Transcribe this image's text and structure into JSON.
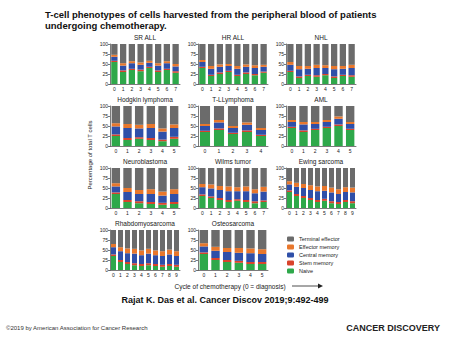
{
  "title": "T-cell phenotypes of cells harvested from the peripheral blood of patients undergoing chemotherapy.",
  "y_label": "Percentage of total T cells",
  "x_label": "Cycle of chemotherapy (0 = diagnosis)",
  "citation": "Rajat K. Das et al. Cancer Discov 2019;9:492-499",
  "copyright": "©2019 by American Association for Cancer Research",
  "journal": "CANCER DISCOVERY",
  "chart_data": [
    {
      "type": "bar",
      "title": "SR ALL",
      "stacked": true,
      "grid": false,
      "ylim": [
        0,
        100
      ],
      "yticks": [
        0,
        25,
        50,
        75,
        100
      ],
      "categories": [
        0,
        1,
        2,
        3,
        4,
        5,
        6,
        7
      ],
      "series": [
        {
          "name": "Naive",
          "color": "#2ea84a",
          "values": [
            55,
            30,
            35,
            32,
            40,
            30,
            35,
            28
          ]
        },
        {
          "name": "Stem memory",
          "color": "#d9432b",
          "values": [
            3,
            4,
            3,
            4,
            3,
            4,
            3,
            4
          ]
        },
        {
          "name": "Central memory",
          "color": "#2f4fa8",
          "values": [
            10,
            12,
            14,
            12,
            10,
            12,
            14,
            12
          ]
        },
        {
          "name": "Effector memory",
          "color": "#e8772c",
          "values": [
            5,
            6,
            5,
            6,
            5,
            6,
            5,
            6
          ]
        },
        {
          "name": "Terminal effector",
          "color": "#6b6b6b",
          "values": [
            27,
            48,
            43,
            46,
            42,
            48,
            43,
            50
          ]
        }
      ]
    },
    {
      "type": "bar",
      "title": "HR ALL",
      "stacked": true,
      "grid": false,
      "ylim": [
        0,
        100
      ],
      "yticks": [
        0,
        25,
        50,
        75,
        100
      ],
      "categories": [
        0,
        1,
        2,
        3,
        4,
        5,
        6,
        7
      ],
      "series": [
        {
          "name": "Naive",
          "color": "#2ea84a",
          "values": [
            40,
            20,
            25,
            30,
            20,
            25,
            22,
            28
          ]
        },
        {
          "name": "Stem memory",
          "color": "#d9432b",
          "values": [
            3,
            3,
            4,
            3,
            3,
            4,
            3,
            3
          ]
        },
        {
          "name": "Central memory",
          "color": "#2f4fa8",
          "values": [
            12,
            15,
            14,
            12,
            15,
            14,
            15,
            12
          ]
        },
        {
          "name": "Effector memory",
          "color": "#e8772c",
          "values": [
            5,
            7,
            6,
            5,
            7,
            6,
            7,
            5
          ]
        },
        {
          "name": "Terminal effector",
          "color": "#6b6b6b",
          "values": [
            40,
            55,
            51,
            50,
            55,
            51,
            53,
            52
          ]
        }
      ]
    },
    {
      "type": "bar",
      "title": "NHL",
      "stacked": true,
      "grid": false,
      "ylim": [
        0,
        100
      ],
      "yticks": [
        0,
        25,
        50,
        75,
        100
      ],
      "categories": [
        0,
        1,
        2,
        3,
        4,
        5,
        6,
        7
      ],
      "series": [
        {
          "name": "Naive",
          "color": "#2ea84a",
          "values": [
            30,
            15,
            20,
            18,
            22,
            15,
            20,
            18
          ]
        },
        {
          "name": "Stem memory",
          "color": "#d9432b",
          "values": [
            3,
            4,
            3,
            4,
            3,
            4,
            3,
            4
          ]
        },
        {
          "name": "Central memory",
          "color": "#2f4fa8",
          "values": [
            15,
            18,
            15,
            18,
            15,
            18,
            15,
            18
          ]
        },
        {
          "name": "Effector memory",
          "color": "#e8772c",
          "values": [
            7,
            8,
            7,
            8,
            7,
            8,
            7,
            8
          ]
        },
        {
          "name": "Terminal effector",
          "color": "#6b6b6b",
          "values": [
            45,
            55,
            55,
            52,
            53,
            55,
            55,
            52
          ]
        }
      ]
    },
    {
      "type": "bar",
      "title": "Hodgkin lymphoma",
      "stacked": true,
      "grid": false,
      "ylim": [
        0,
        100
      ],
      "yticks": [
        0,
        25,
        50,
        75,
        100
      ],
      "categories": [
        0,
        1,
        2,
        3,
        4,
        5
      ],
      "series": [
        {
          "name": "Naive",
          "color": "#2ea84a",
          "values": [
            25,
            15,
            18,
            15,
            12,
            18
          ]
        },
        {
          "name": "Stem memory",
          "color": "#d9432b",
          "values": [
            4,
            5,
            4,
            5,
            4,
            5
          ]
        },
        {
          "name": "Central memory",
          "color": "#2f4fa8",
          "values": [
            20,
            25,
            22,
            25,
            20,
            22
          ]
        },
        {
          "name": "Effector memory",
          "color": "#e8772c",
          "values": [
            8,
            10,
            9,
            10,
            8,
            9
          ]
        },
        {
          "name": "Terminal effector",
          "color": "#6b6b6b",
          "values": [
            43,
            45,
            47,
            45,
            56,
            46
          ]
        }
      ]
    },
    {
      "type": "bar",
      "title": "T-LLymphoma",
      "stacked": true,
      "grid": false,
      "ylim": [
        0,
        100
      ],
      "yticks": [
        0,
        25,
        50,
        75,
        100
      ],
      "categories": [
        0,
        1,
        2,
        3,
        4
      ],
      "series": [
        {
          "name": "Naive",
          "color": "#2ea84a",
          "values": [
            35,
            40,
            30,
            35,
            25
          ]
        },
        {
          "name": "Stem memory",
          "color": "#d9432b",
          "values": [
            3,
            4,
            3,
            4,
            3
          ]
        },
        {
          "name": "Central memory",
          "color": "#2f4fa8",
          "values": [
            12,
            15,
            12,
            14,
            12
          ]
        },
        {
          "name": "Effector memory",
          "color": "#e8772c",
          "values": [
            5,
            6,
            5,
            6,
            5
          ]
        },
        {
          "name": "Terminal effector",
          "color": "#6b6b6b",
          "values": [
            45,
            35,
            50,
            41,
            55
          ]
        }
      ]
    },
    {
      "type": "bar",
      "title": "AML",
      "stacked": true,
      "grid": false,
      "ylim": [
        0,
        100
      ],
      "yticks": [
        0,
        25,
        50,
        75,
        100
      ],
      "categories": [
        0,
        1,
        2,
        3,
        4,
        5
      ],
      "series": [
        {
          "name": "Naive",
          "color": "#2ea84a",
          "values": [
            45,
            35,
            40,
            45,
            50,
            40
          ]
        },
        {
          "name": "Stem memory",
          "color": "#d9432b",
          "values": [
            3,
            4,
            3,
            3,
            4,
            3
          ]
        },
        {
          "name": "Central memory",
          "color": "#2f4fa8",
          "values": [
            12,
            15,
            12,
            12,
            14,
            12
          ]
        },
        {
          "name": "Effector memory",
          "color": "#e8772c",
          "values": [
            5,
            6,
            5,
            5,
            6,
            5
          ]
        },
        {
          "name": "Terminal effector",
          "color": "#6b6b6b",
          "values": [
            35,
            40,
            40,
            35,
            26,
            40
          ]
        }
      ]
    },
    {
      "type": "bar",
      "title": "Neuroblastoma",
      "stacked": true,
      "grid": false,
      "ylim": [
        0,
        100
      ],
      "yticks": [
        0,
        25,
        50,
        75,
        100
      ],
      "categories": [
        0,
        1,
        2,
        3,
        4,
        5
      ],
      "series": [
        {
          "name": "Naive",
          "color": "#2ea84a",
          "values": [
            35,
            15,
            12,
            10,
            8,
            10
          ]
        },
        {
          "name": "Stem memory",
          "color": "#d9432b",
          "values": [
            4,
            5,
            5,
            5,
            5,
            5
          ]
        },
        {
          "name": "Central memory",
          "color": "#2f4fa8",
          "values": [
            15,
            20,
            18,
            20,
            18,
            20
          ]
        },
        {
          "name": "Effector memory",
          "color": "#e8772c",
          "values": [
            8,
            10,
            10,
            12,
            10,
            12
          ]
        },
        {
          "name": "Terminal effector",
          "color": "#6b6b6b",
          "values": [
            38,
            50,
            55,
            53,
            59,
            53
          ]
        }
      ]
    },
    {
      "type": "bar",
      "title": "Wilms tumor",
      "stacked": true,
      "grid": false,
      "ylim": [
        0,
        100
      ],
      "yticks": [
        0,
        25,
        50,
        75,
        100
      ],
      "categories": [
        0,
        1,
        2,
        3,
        4,
        5,
        6,
        7
      ],
      "series": [
        {
          "name": "Naive",
          "color": "#2ea84a",
          "values": [
            30,
            25,
            20,
            15,
            18,
            15,
            12,
            15
          ]
        },
        {
          "name": "Stem memory",
          "color": "#d9432b",
          "values": [
            4,
            4,
            5,
            5,
            4,
            5,
            5,
            4
          ]
        },
        {
          "name": "Central memory",
          "color": "#2f4fa8",
          "values": [
            18,
            20,
            20,
            22,
            20,
            22,
            20,
            22
          ]
        },
        {
          "name": "Effector memory",
          "color": "#e8772c",
          "values": [
            8,
            10,
            10,
            12,
            10,
            12,
            10,
            12
          ]
        },
        {
          "name": "Terminal effector",
          "color": "#6b6b6b",
          "values": [
            40,
            41,
            45,
            46,
            48,
            46,
            53,
            47
          ]
        }
      ]
    },
    {
      "type": "bar",
      "title": "Ewing sarcoma",
      "stacked": true,
      "grid": false,
      "ylim": [
        0,
        100
      ],
      "yticks": [
        0,
        25,
        50,
        75,
        100
      ],
      "categories": [
        0,
        1,
        2,
        3,
        4,
        5,
        6,
        7,
        8,
        9
      ],
      "series": [
        {
          "name": "Naive",
          "color": "#2ea84a",
          "values": [
            40,
            30,
            25,
            20,
            15,
            18,
            12,
            10,
            15,
            12
          ]
        },
        {
          "name": "Stem memory",
          "color": "#d9432b",
          "values": [
            4,
            5,
            5,
            5,
            5,
            5,
            5,
            5,
            5,
            5
          ]
        },
        {
          "name": "Central memory",
          "color": "#2f4fa8",
          "values": [
            15,
            18,
            20,
            20,
            22,
            20,
            22,
            20,
            20,
            22
          ]
        },
        {
          "name": "Effector memory",
          "color": "#e8772c",
          "values": [
            8,
            10,
            10,
            12,
            12,
            12,
            12,
            12,
            12,
            12
          ]
        },
        {
          "name": "Terminal effector",
          "color": "#6b6b6b",
          "values": [
            33,
            37,
            40,
            43,
            46,
            45,
            49,
            53,
            48,
            49
          ]
        }
      ]
    },
    {
      "type": "bar",
      "title": "Rhabdomyosarcoma",
      "stacked": true,
      "grid": false,
      "ylim": [
        0,
        100
      ],
      "yticks": [
        0,
        25,
        50,
        75,
        100
      ],
      "categories": [
        0,
        1,
        2,
        3,
        4,
        5,
        6,
        7,
        8,
        9
      ],
      "series": [
        {
          "name": "Naive",
          "color": "#2ea84a",
          "values": [
            35,
            20,
            15,
            12,
            10,
            12,
            10,
            8,
            10,
            8
          ]
        },
        {
          "name": "Stem memory",
          "color": "#d9432b",
          "values": [
            4,
            5,
            5,
            5,
            5,
            5,
            5,
            5,
            5,
            5
          ]
        },
        {
          "name": "Central memory",
          "color": "#2f4fa8",
          "values": [
            18,
            22,
            22,
            24,
            22,
            24,
            22,
            22,
            24,
            22
          ]
        },
        {
          "name": "Effector memory",
          "color": "#e8772c",
          "values": [
            8,
            10,
            12,
            12,
            12,
            12,
            12,
            12,
            12,
            12
          ]
        },
        {
          "name": "Terminal effector",
          "color": "#6b6b6b",
          "values": [
            35,
            43,
            46,
            47,
            51,
            47,
            51,
            53,
            49,
            53
          ]
        }
      ]
    },
    {
      "type": "bar",
      "title": "Osteosarcoma",
      "stacked": true,
      "grid": false,
      "legend": "right",
      "ylim": [
        0,
        100
      ],
      "yticks": [
        0,
        25,
        50,
        75,
        100
      ],
      "categories": [
        0,
        1,
        2,
        3,
        4,
        5
      ],
      "series": [
        {
          "name": "Naive",
          "color": "#2ea84a",
          "values": [
            40,
            25,
            20,
            18,
            15,
            15
          ]
        },
        {
          "name": "Stem memory",
          "color": "#d9432b",
          "values": [
            4,
            5,
            5,
            5,
            5,
            5
          ]
        },
        {
          "name": "Central memory",
          "color": "#2f4fa8",
          "values": [
            15,
            18,
            20,
            20,
            22,
            20
          ]
        },
        {
          "name": "Effector memory",
          "color": "#e8772c",
          "values": [
            8,
            10,
            10,
            12,
            12,
            12
          ]
        },
        {
          "name": "Terminal effector",
          "color": "#6b6b6b",
          "values": [
            33,
            42,
            45,
            45,
            46,
            48
          ]
        }
      ]
    }
  ]
}
